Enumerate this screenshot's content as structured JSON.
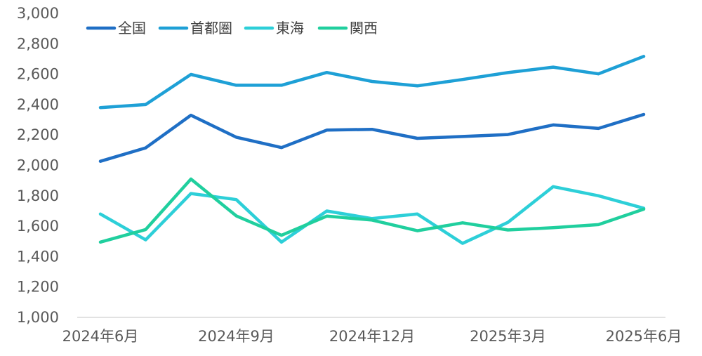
{
  "chart_data": {
    "type": "line",
    "title": "",
    "xlabel": "",
    "ylabel": "",
    "ylim": [
      1000,
      3000
    ],
    "y_ticks": [
      "1,000",
      "1,200",
      "1,400",
      "1,600",
      "1,800",
      "2,000",
      "2,200",
      "2,400",
      "2,600",
      "2,800",
      "3,000"
    ],
    "y_tick_values": [
      1000,
      1200,
      1400,
      1600,
      1800,
      2000,
      2200,
      2400,
      2600,
      2800,
      3000
    ],
    "x": [
      "2024年6月",
      "2024年7月",
      "2024年8月",
      "2024年9月",
      "2024年10月",
      "2024年11月",
      "2024年12月",
      "2025年1月",
      "2025年2月",
      "2025年3月",
      "2025年4月",
      "2025年5月",
      "2025年6月"
    ],
    "x_tick_labels": [
      {
        "index": 0,
        "label": "2024年6月"
      },
      {
        "index": 3,
        "label": "2024年9月"
      },
      {
        "index": 6,
        "label": "2024年12月"
      },
      {
        "index": 9,
        "label": "2025年3月"
      },
      {
        "index": 12,
        "label": "2025年6月"
      }
    ],
    "grid": false,
    "legend_position": "top-left",
    "series": [
      {
        "name": "全国",
        "color": "#1f6fc5",
        "values": [
          2027,
          2115,
          2330,
          2185,
          2117,
          2232,
          2237,
          2178,
          2190,
          2203,
          2266,
          2243,
          2335
        ]
      },
      {
        "name": "首都圏",
        "color": "#1ea0d6",
        "values": [
          2380,
          2400,
          2598,
          2527,
          2527,
          2611,
          2552,
          2523,
          2565,
          2610,
          2646,
          2602,
          2717
        ]
      },
      {
        "name": "東海",
        "color": "#2dcfd8",
        "values": [
          1680,
          1510,
          1815,
          1775,
          1495,
          1700,
          1650,
          1680,
          1487,
          1625,
          1860,
          1800,
          1718
        ]
      },
      {
        "name": "関西",
        "color": "#20cf9e",
        "values": [
          1495,
          1578,
          1910,
          1668,
          1540,
          1666,
          1640,
          1570,
          1622,
          1575,
          1590,
          1610,
          1712
        ]
      }
    ]
  }
}
